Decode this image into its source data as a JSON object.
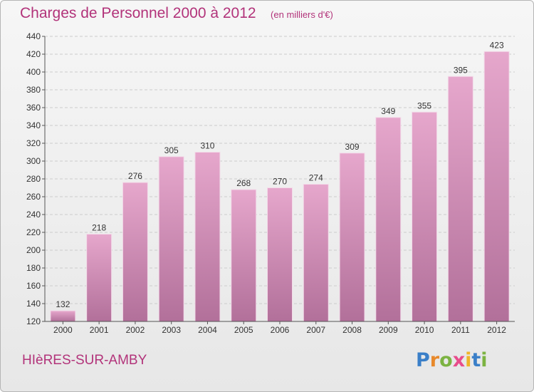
{
  "title": "Charges de Personnel 2000 à 2012",
  "subtitle": "(en milliers d'€)",
  "commune": "HIèRES-SUR-AMBY",
  "logo": {
    "text": "Proxiti",
    "letters": [
      {
        "ch": "P",
        "color": "#3a7fc8"
      },
      {
        "ch": "r",
        "color": "#e8892b"
      },
      {
        "ch": "o",
        "color": "#7cb342"
      },
      {
        "ch": "x",
        "color": "#e84c8b"
      },
      {
        "ch": "i",
        "color": "#f0b428"
      },
      {
        "ch": "t",
        "color": "#3a7fc8"
      },
      {
        "ch": "i",
        "color": "#7cb342"
      }
    ]
  },
  "colors": {
    "bar_top": "#e6a7cc",
    "bar_bottom": "#b2709a",
    "grid": "#cccccc",
    "accent": "#b2337a",
    "text": "#333333"
  },
  "chart_data": {
    "type": "bar",
    "categories": [
      "2000",
      "2001",
      "2002",
      "2003",
      "2004",
      "2005",
      "2006",
      "2007",
      "2008",
      "2009",
      "2010",
      "2011",
      "2012"
    ],
    "values": [
      132,
      218,
      276,
      305,
      310,
      268,
      270,
      274,
      309,
      349,
      355,
      395,
      423
    ],
    "ylim": [
      120,
      440
    ],
    "yticks": [
      120,
      140,
      160,
      180,
      200,
      220,
      240,
      260,
      280,
      300,
      320,
      340,
      360,
      380,
      400,
      420,
      440
    ],
    "grid": true,
    "xlabel": "",
    "ylabel": ""
  }
}
